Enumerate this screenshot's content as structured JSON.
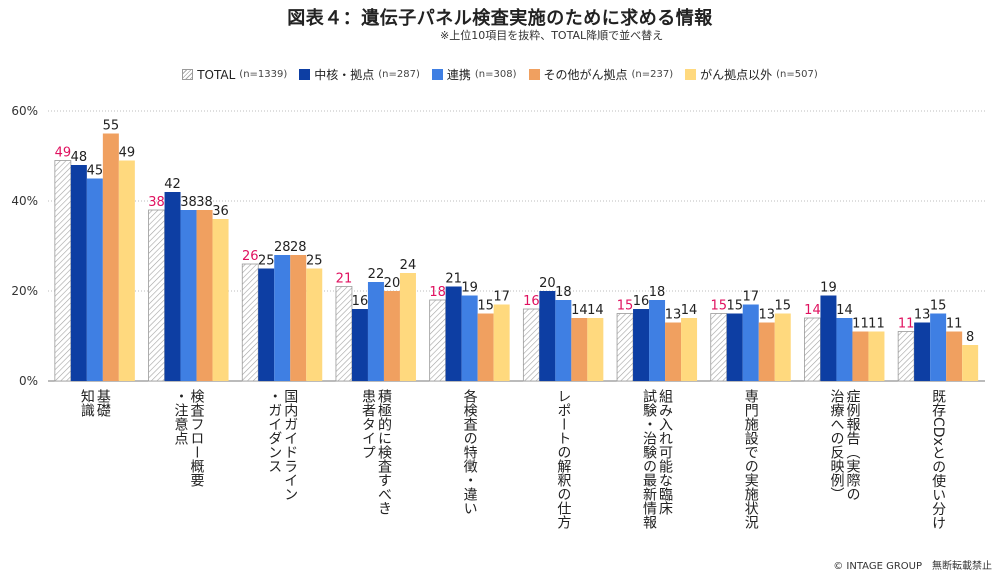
{
  "title": "図表４：遺伝子パネル検査実施のために求める情報",
  "subtitle": "※上位10項目を抜粋、TOTAL降順で並べ替え",
  "copyright": "© INTAGE GROUP　無断転載禁止",
  "colors": {
    "total_label": "#e0115f",
    "grid": "#bdbdbd"
  },
  "legend": [
    {
      "name": "TOTAL",
      "n": "(n=1339)",
      "color": "hatch"
    },
    {
      "name": "中核・拠点",
      "n": "(n=287)",
      "color": "#0d3ea3"
    },
    {
      "name": "連携",
      "n": "(n=308)",
      "color": "#3f7fe3"
    },
    {
      "name": "その他がん拠点",
      "n": "(n=237)",
      "color": "#f0a060"
    },
    {
      "name": "がん拠点以外",
      "n": "(n=507)",
      "color": "#ffd97e"
    }
  ],
  "chart_data": {
    "type": "bar",
    "yticks": [
      "0%",
      "20%",
      "40%",
      "60%"
    ],
    "ylim": [
      0,
      60
    ],
    "grid": true,
    "legend_position": "top",
    "categories": [
      [
        "基礎",
        "知識"
      ],
      [
        "検査フロー概要",
        "・注意点"
      ],
      [
        "国内ガイドライン",
        "・ガイダンス"
      ],
      [
        "積極的に検査すべき",
        "患者タイプ"
      ],
      [
        "各検査の特徴・違い"
      ],
      [
        "レポートの解釈の仕方"
      ],
      [
        "組み入れ可能な臨床",
        "試験・治験の最新情報"
      ],
      [
        "専門施設での実施状況"
      ],
      [
        "症例報告（実際の",
        "治療への反映例）"
      ],
      [
        "既存CDxとの使い分け"
      ]
    ],
    "series": [
      {
        "name": "TOTAL",
        "values": [
          49,
          38,
          26,
          21,
          18,
          16,
          15,
          15,
          14,
          11
        ]
      },
      {
        "name": "中核・拠点",
        "values": [
          48,
          42,
          25,
          16,
          21,
          20,
          16,
          15,
          19,
          13
        ]
      },
      {
        "name": "連携",
        "values": [
          45,
          38,
          28,
          22,
          19,
          18,
          18,
          17,
          14,
          15
        ]
      },
      {
        "name": "その他がん拠点",
        "values": [
          55,
          38,
          28,
          20,
          15,
          14,
          13,
          13,
          11,
          11
        ]
      },
      {
        "name": "がん拠点以外",
        "values": [
          49,
          36,
          25,
          24,
          17,
          14,
          14,
          15,
          11,
          8
        ]
      }
    ]
  }
}
